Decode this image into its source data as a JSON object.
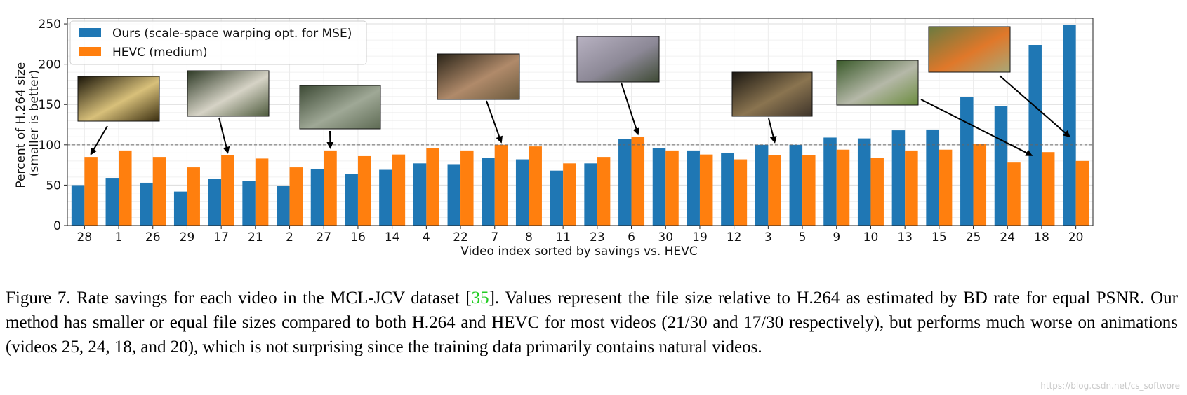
{
  "chart_data": {
    "type": "bar",
    "categories": [
      "28",
      "1",
      "26",
      "29",
      "17",
      "21",
      "2",
      "27",
      "16",
      "14",
      "4",
      "22",
      "7",
      "8",
      "11",
      "23",
      "6",
      "30",
      "19",
      "12",
      "3",
      "5",
      "9",
      "10",
      "13",
      "15",
      "25",
      "24",
      "18",
      "20"
    ],
    "series": [
      {
        "name": "Ours (scale-space warping opt. for MSE)",
        "color": "#1f77b4",
        "values": [
          50,
          59,
          53,
          42,
          58,
          55,
          49,
          70,
          64,
          69,
          77,
          76,
          84,
          82,
          68,
          77,
          107,
          96,
          93,
          90,
          100,
          100,
          109,
          108,
          118,
          119,
          159,
          148,
          224,
          249
        ]
      },
      {
        "name": "HEVC (medium)",
        "color": "#ff7f0e",
        "values": [
          85,
          93,
          85,
          72,
          87,
          83,
          72,
          93,
          86,
          88,
          96,
          93,
          100,
          98,
          77,
          85,
          110,
          93,
          88,
          82,
          87,
          87,
          94,
          84,
          93,
          94,
          101,
          78,
          91,
          80
        ]
      }
    ],
    "xlabel": "Video index sorted by savings vs. HEVC",
    "ylabel_line1": "Percent of H.264 size",
    "ylabel_line2": "(smaller is better)",
    "ylim": [
      0,
      257
    ],
    "yticks": [
      0,
      50,
      100,
      150,
      200,
      250
    ],
    "reference_line": 100,
    "legend_position": "top-left",
    "grid": true
  },
  "thumbnails": [
    {
      "video": "28",
      "colors": [
        "#1a1508",
        "#d8c07a",
        "#3a2e10"
      ],
      "pointer_value": 85
    },
    {
      "video": "17",
      "colors": [
        "#2e3a26",
        "#d6d3c6",
        "#4d5a3c"
      ],
      "pointer_value": 87
    },
    {
      "video": "27",
      "colors": [
        "#3d4a35",
        "#9fa896",
        "#5e6b54"
      ],
      "pointer_value": 93
    },
    {
      "video": "7",
      "colors": [
        "#2a2418",
        "#b08a6a",
        "#6b5a3e"
      ],
      "pointer_value": 100
    },
    {
      "video": "6",
      "colors": [
        "#b8b2c2",
        "#8c8896",
        "#3e4a34"
      ],
      "pointer_value": 110
    },
    {
      "video": "3",
      "colors": [
        "#1c1812",
        "#8a7450",
        "#3e342a"
      ],
      "pointer_value": 100
    },
    {
      "video": "18",
      "colors": [
        "#3a5a2a",
        "#b5b8a8",
        "#6b8c3e"
      ],
      "pointer_value": 91
    },
    {
      "video": "20",
      "colors": [
        "#6a7a40",
        "#e0782a",
        "#a8a878"
      ],
      "pointer_value": 100
    }
  ],
  "caption": {
    "before_cite": "Figure 7. Rate savings for each video in the MCL-JCV dataset [",
    "cite": "35",
    "after_cite": "].  Values represent the file size relative to H.264 as estimated by BD rate for equal PSNR. Our method has smaller or equal file sizes compared to both H.264 and HEVC for most videos (21/30 and 17/30 respectively), but performs much worse on animations (videos 25, 24, 18, and 20), which is not surprising since the training data primarily contains natural videos."
  },
  "watermark": "https://blog.csdn.net/cs_softwore"
}
